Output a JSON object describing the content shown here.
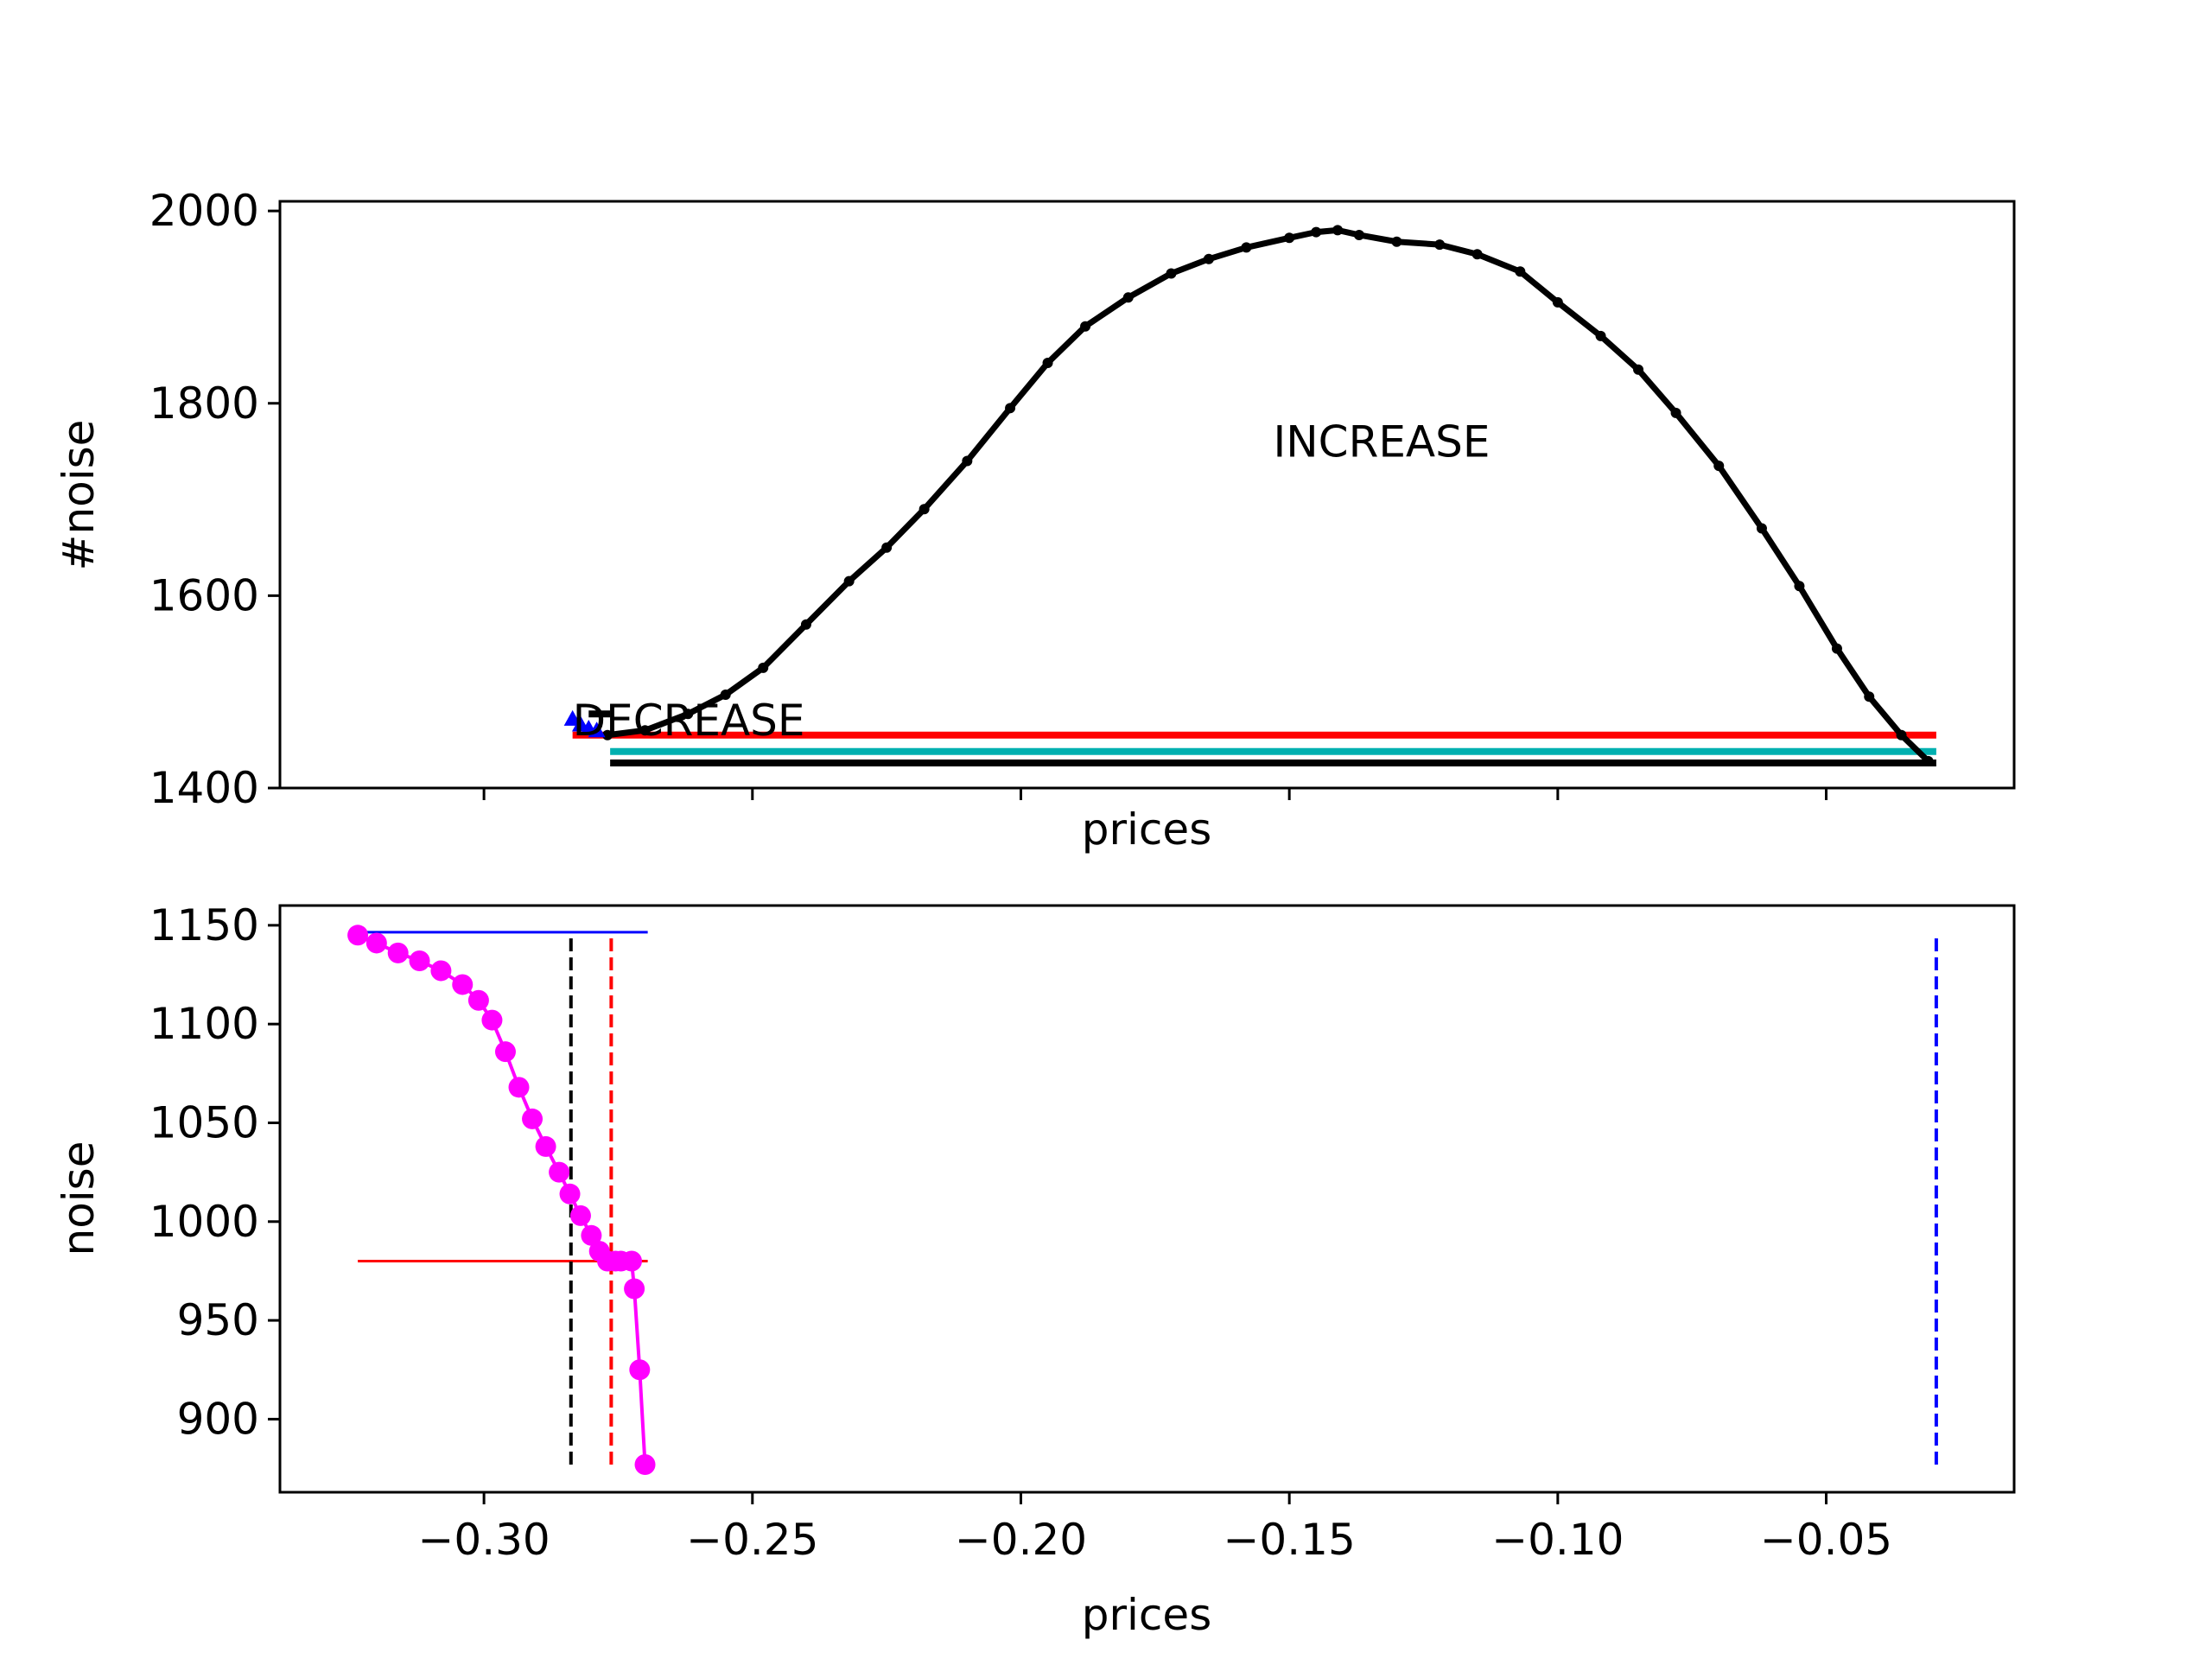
{
  "chart_data": [
    {
      "type": "line",
      "title": "",
      "xlabel": "prices",
      "ylabel": "#noise",
      "xlim": [
        -0.338,
        -0.015
      ],
      "ylim": [
        1400,
        2010
      ],
      "xticks": [
        -0.3,
        -0.25,
        -0.2,
        -0.15,
        -0.1,
        -0.05
      ],
      "xtick_labels_shown": false,
      "yticks": [
        1400,
        1600,
        1800,
        2000
      ],
      "ytick_labels": [
        "1400",
        "1600",
        "1800",
        "2000"
      ],
      "grid": false,
      "annotations": [
        {
          "text": "INCREASE",
          "x": -0.153,
          "y": 1760
        },
        {
          "text": "DECREASE",
          "x": -0.2835,
          "y": 1470
        }
      ],
      "series": [
        {
          "color": "#000000",
          "marker": "dot",
          "x": [
            -0.277,
            -0.27,
            -0.262,
            -0.255,
            -0.248,
            -0.24,
            -0.232,
            -0.225,
            -0.218,
            -0.21,
            -0.202,
            -0.195,
            -0.188,
            -0.18,
            -0.172,
            -0.165,
            -0.158,
            -0.15,
            -0.145,
            -0.141,
            -0.137,
            -0.13,
            -0.122,
            -0.115,
            -0.107,
            -0.1,
            -0.092,
            -0.085,
            -0.078,
            -0.07,
            -0.062,
            -0.055,
            -0.048,
            -0.042,
            -0.036,
            -0.031
          ],
          "y": [
            1455,
            1460,
            1477,
            1497,
            1525,
            1570,
            1615,
            1650,
            1690,
            1740,
            1795,
            1842,
            1880,
            1910,
            1935,
            1950,
            1962,
            1972,
            1978,
            1980,
            1975,
            1968,
            1965,
            1955,
            1937,
            1905,
            1870,
            1835,
            1790,
            1735,
            1670,
            1610,
            1545,
            1495,
            1455,
            1428
          ]
        },
        {
          "color": "#0000ff",
          "marker": "triangle",
          "x": [
            -0.2835,
            -0.282,
            -0.2805,
            -0.279
          ],
          "y": [
            1472,
            1466,
            1462,
            1460
          ]
        }
      ],
      "hlines": [
        {
          "color": "#ff0000",
          "y": 1455,
          "xmin": -0.2835,
          "xmax": -0.0295
        },
        {
          "color": "#00b0b0",
          "y": 1438,
          "xmin": -0.2765,
          "xmax": -0.0295
        },
        {
          "color": "#000000",
          "y": 1426,
          "xmin": -0.2765,
          "xmax": -0.0295
        },
        {
          "color": "#000000",
          "y": 1477,
          "xmin": -0.2805,
          "xmax": -0.2765
        }
      ]
    },
    {
      "type": "line",
      "title": "",
      "xlabel": "prices",
      "ylabel": "noise",
      "xlim": [
        -0.338,
        -0.015
      ],
      "ylim": [
        863,
        1160
      ],
      "xticks": [
        -0.3,
        -0.25,
        -0.2,
        -0.15,
        -0.1,
        -0.05
      ],
      "xtick_labels": [
        "−0.30",
        "−0.25",
        "−0.20",
        "−0.15",
        "−0.10",
        "−0.05"
      ],
      "yticks": [
        900,
        950,
        1000,
        1050,
        1100,
        1150
      ],
      "ytick_labels": [
        "900",
        "950",
        "1000",
        "1050",
        "1100",
        "1150"
      ],
      "grid": false,
      "series": [
        {
          "color": "#ff00ff",
          "marker": "circle",
          "x": [
            -0.3235,
            -0.32,
            -0.316,
            -0.312,
            -0.308,
            -0.304,
            -0.301,
            -0.2985,
            -0.296,
            -0.2935,
            -0.291,
            -0.2885,
            -0.286,
            -0.284,
            -0.282,
            -0.28,
            -0.2785,
            -0.277,
            -0.2755,
            -0.2745,
            -0.2725,
            -0.272,
            -0.271,
            -0.27
          ],
          "y": [
            1145,
            1141,
            1136,
            1132,
            1127,
            1120,
            1112,
            1102,
            1086,
            1068,
            1052,
            1038,
            1025,
            1014,
            1003,
            993,
            985,
            980,
            980,
            980,
            980,
            966,
            925,
            877
          ]
        }
      ],
      "hlines": [
        {
          "color": "#0000ff",
          "style": "solid",
          "y": 1146.5,
          "xmin": -0.3235,
          "xmax": -0.2695
        },
        {
          "color": "#ff0000",
          "style": "solid",
          "y": 980,
          "xmin": -0.3235,
          "xmax": -0.2695
        }
      ],
      "vlines": [
        {
          "color": "#000000",
          "style": "dashed",
          "x": -0.2838,
          "ymin": 877,
          "ymax": 1146
        },
        {
          "color": "#ff0000",
          "style": "dashed",
          "x": -0.2763,
          "ymin": 877,
          "ymax": 1146
        },
        {
          "color": "#0000ff",
          "style": "dashed",
          "x": -0.0295,
          "ymin": 877,
          "ymax": 1146
        }
      ]
    }
  ]
}
